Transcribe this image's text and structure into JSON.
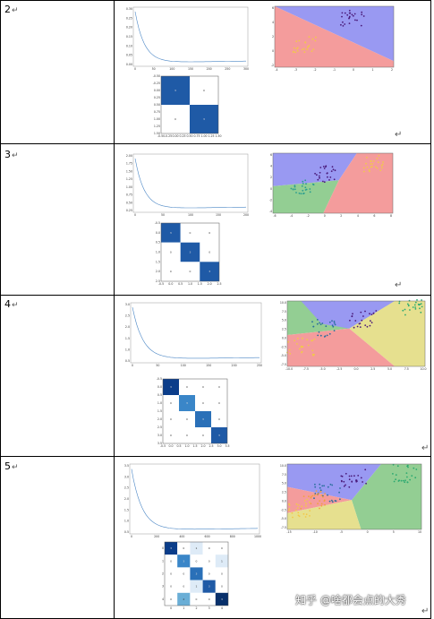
{
  "rows": [
    {
      "label": "2",
      "loss": {
        "xticks": [
          "0",
          "50",
          "100",
          "150",
          "200",
          "250",
          "300"
        ],
        "yticks": [
          "0.30",
          "0.25",
          "0.20",
          "0.15",
          "0.10",
          "0.05",
          "0.00"
        ]
      },
      "boundary": {
        "xticks": [
          "-4",
          "-3",
          "-2",
          "-1",
          "0",
          "1",
          "2"
        ],
        "yticks": [
          "6",
          "4",
          "2",
          "0",
          "-2"
        ]
      },
      "cm": {
        "n": 2,
        "values": [
          [
            "3",
            "0"
          ],
          [
            "0",
            "3"
          ]
        ],
        "xticks": [
          "-0.50",
          "-0.25",
          "0.00",
          "0.25",
          "0.50",
          "0.75",
          "1.00",
          "1.25",
          "1.50"
        ],
        "yticks": [
          "-0.50",
          "-0.25",
          "0.00",
          "0.25",
          "0.50",
          "0.75",
          "1.00",
          "1.25",
          "1.50"
        ]
      }
    },
    {
      "label": "3",
      "loss": {
        "xticks": [
          "0",
          "50",
          "100",
          "150",
          "200"
        ],
        "yticks": [
          "2.00",
          "1.75",
          "1.50",
          "1.25",
          "1.00",
          "0.75",
          "0.50",
          "0.25"
        ]
      },
      "boundary": {
        "xticks": [
          "-6",
          "-4",
          "-2",
          "0",
          "2",
          "4",
          "6",
          "8"
        ],
        "yticks": [
          "6",
          "4",
          "2",
          "0",
          "-2",
          "-4"
        ]
      },
      "cm": {
        "n": 3,
        "values": [
          [
            "3",
            "0",
            "0"
          ],
          [
            "0",
            "3",
            "0"
          ],
          [
            "0",
            "0",
            "3"
          ]
        ],
        "xticks": [
          "-0.5",
          "0.0",
          "0.5",
          "1.0",
          "1.5",
          "2.0",
          "2.5"
        ],
        "yticks": [
          "-0.5",
          "0.0",
          "0.5",
          "1.0",
          "1.5",
          "2.0",
          "2.5"
        ]
      }
    },
    {
      "label": "4",
      "loss": {
        "xticks": [
          "0",
          "50",
          "100",
          "150",
          "200",
          "250"
        ],
        "yticks": [
          "3.0",
          "2.5",
          "2.0",
          "1.5",
          "1.0",
          "0.5"
        ]
      },
      "boundary": {
        "xticks": [
          "-10.0",
          "-7.5",
          "-5.0",
          "-2.5",
          "0.0",
          "2.5",
          "5.0",
          "7.5",
          "10.0"
        ],
        "yticks": [
          "10.0",
          "7.5",
          "5.0",
          "2.5",
          "0.0",
          "-2.5",
          "-5.0",
          "-7.5"
        ]
      },
      "cm": {
        "n": 4,
        "values": [
          [
            "3",
            "0",
            "0",
            "0"
          ],
          [
            "0",
            "3",
            "0",
            "0"
          ],
          [
            "0",
            "0",
            "3",
            "0"
          ],
          [
            "0",
            "0",
            "0",
            "3"
          ]
        ],
        "xticks": [
          "-0.5",
          "0.0",
          "0.5",
          "1.0",
          "1.5",
          "2.0",
          "2.5",
          "3.0",
          "3.5"
        ],
        "yticks": [
          "-0.5",
          "0.0",
          "0.5",
          "1.0",
          "1.5",
          "2.0",
          "2.5",
          "3.0",
          "3.5"
        ]
      }
    },
    {
      "label": "5",
      "loss": {
        "xticks": [
          "0",
          "200",
          "400",
          "600",
          "800",
          "1000"
        ],
        "yticks": [
          "3.5",
          "3.0",
          "2.5",
          "2.0",
          "1.5",
          "1.0",
          "0.5"
        ]
      },
      "boundary": {
        "xticks": [
          "-15",
          "-10",
          "-5",
          "0",
          "5",
          "10"
        ],
        "yticks": [
          "10.0",
          "7.5",
          "5.0",
          "2.5",
          "0.0",
          "-2.5",
          "-5.0",
          "-7.5"
        ]
      },
      "cm": {
        "n": 5,
        "values": [
          [
            "3",
            "0",
            "1",
            "0",
            "0"
          ],
          [
            "0",
            "3",
            "0",
            "0",
            "1"
          ],
          [
            "0",
            "0",
            "3",
            "0",
            "0"
          ],
          [
            "0",
            "0",
            "1",
            "3",
            "0"
          ],
          [
            "0",
            "2",
            "0",
            "0",
            "3"
          ]
        ],
        "xticks": [
          "0",
          "1",
          "2",
          "3",
          "4"
        ],
        "yticks": [
          "0",
          "1",
          "2",
          "3",
          "4"
        ]
      }
    }
  ],
  "paragraph_mark": "↵",
  "watermark": "知乎 @啥都会点的大秀"
}
